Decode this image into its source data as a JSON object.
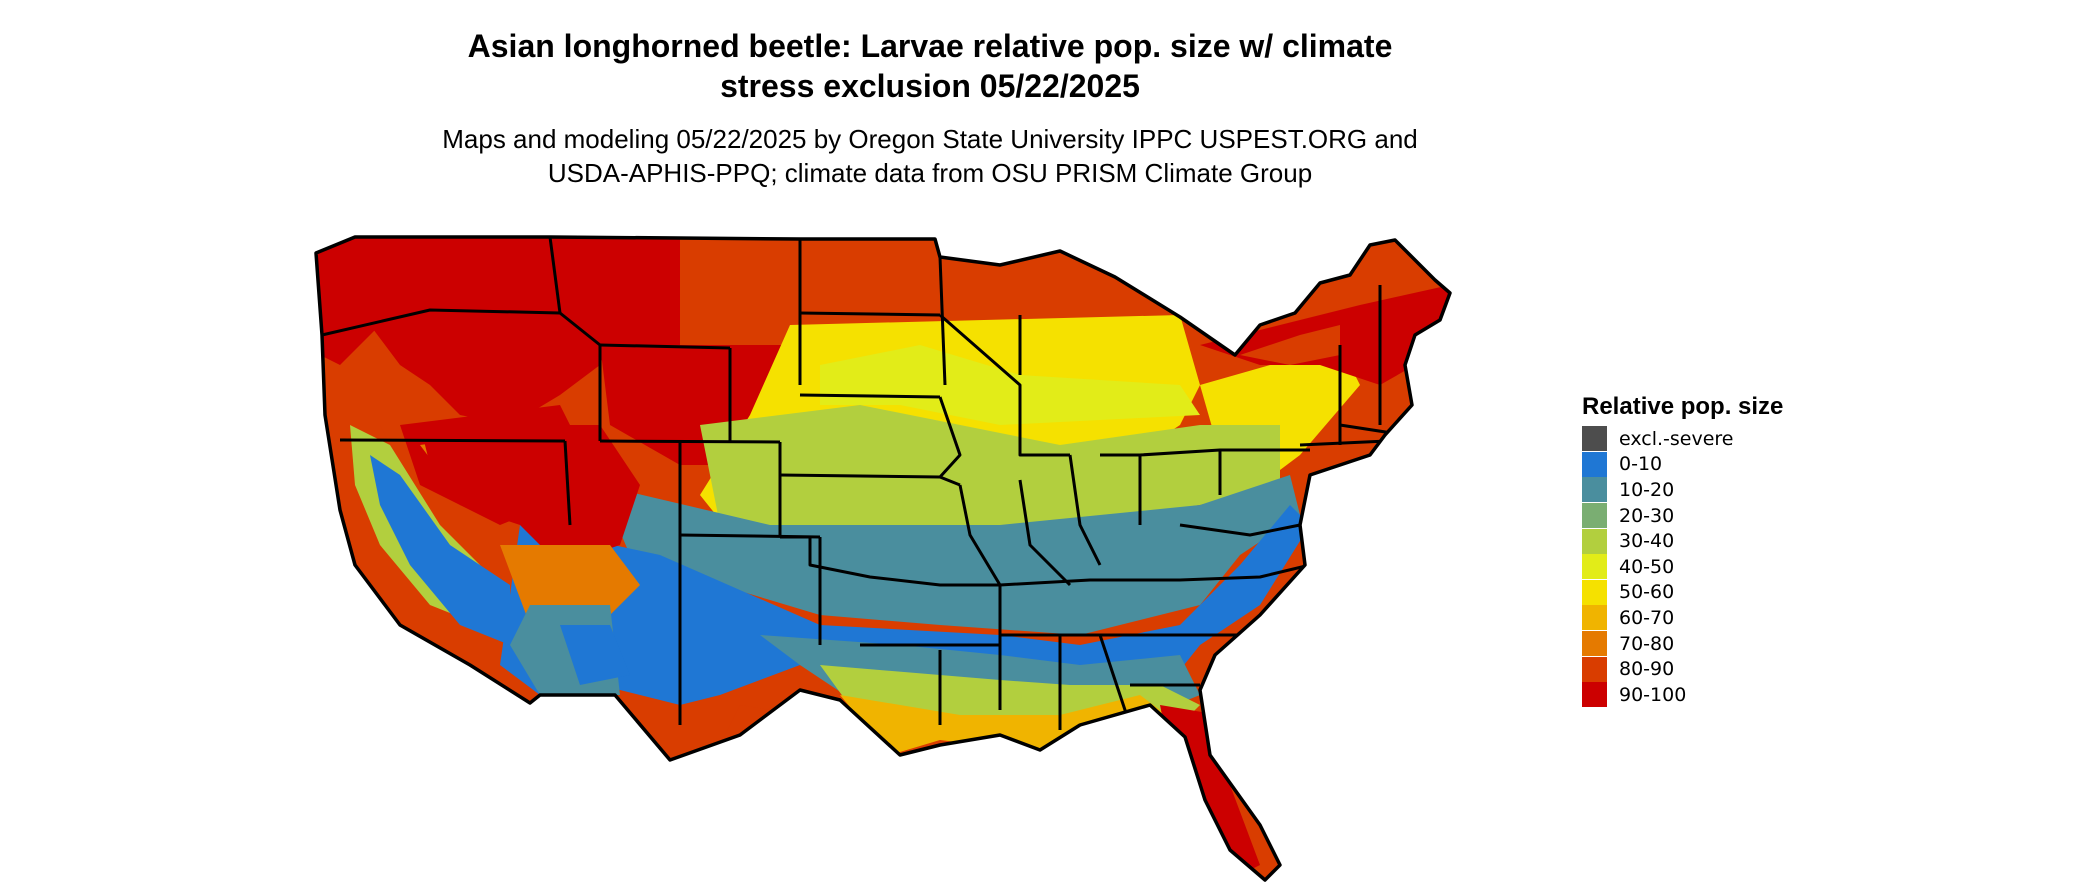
{
  "title_line1": "Asian longhorned beetle: Larvae relative pop. size w/ climate",
  "title_line2": "stress exclusion 05/22/2025",
  "subtitle_line1": "Maps and modeling 05/22/2025 by Oregon State University IPPC USPEST.ORG and",
  "subtitle_line2": "USDA-APHIS-PPQ; climate data from OSU PRISM Climate Group",
  "legend": {
    "title": "Relative pop. size",
    "items": [
      {
        "label": "excl.-severe",
        "color": "#4d4d4d"
      },
      {
        "label": "0-10",
        "color": "#1f77d4"
      },
      {
        "label": "10-20",
        "color": "#4a8e9e"
      },
      {
        "label": "20-30",
        "color": "#7aae72"
      },
      {
        "label": "30-40",
        "color": "#b2cf3e"
      },
      {
        "label": "40-50",
        "color": "#e2ec18"
      },
      {
        "label": "50-60",
        "color": "#f5e100"
      },
      {
        "label": "60-70",
        "color": "#f0b400"
      },
      {
        "label": "70-80",
        "color": "#e57a00"
      },
      {
        "label": "80-90",
        "color": "#d93d00"
      },
      {
        "label": "90-100",
        "color": "#cc0000"
      }
    ]
  }
}
